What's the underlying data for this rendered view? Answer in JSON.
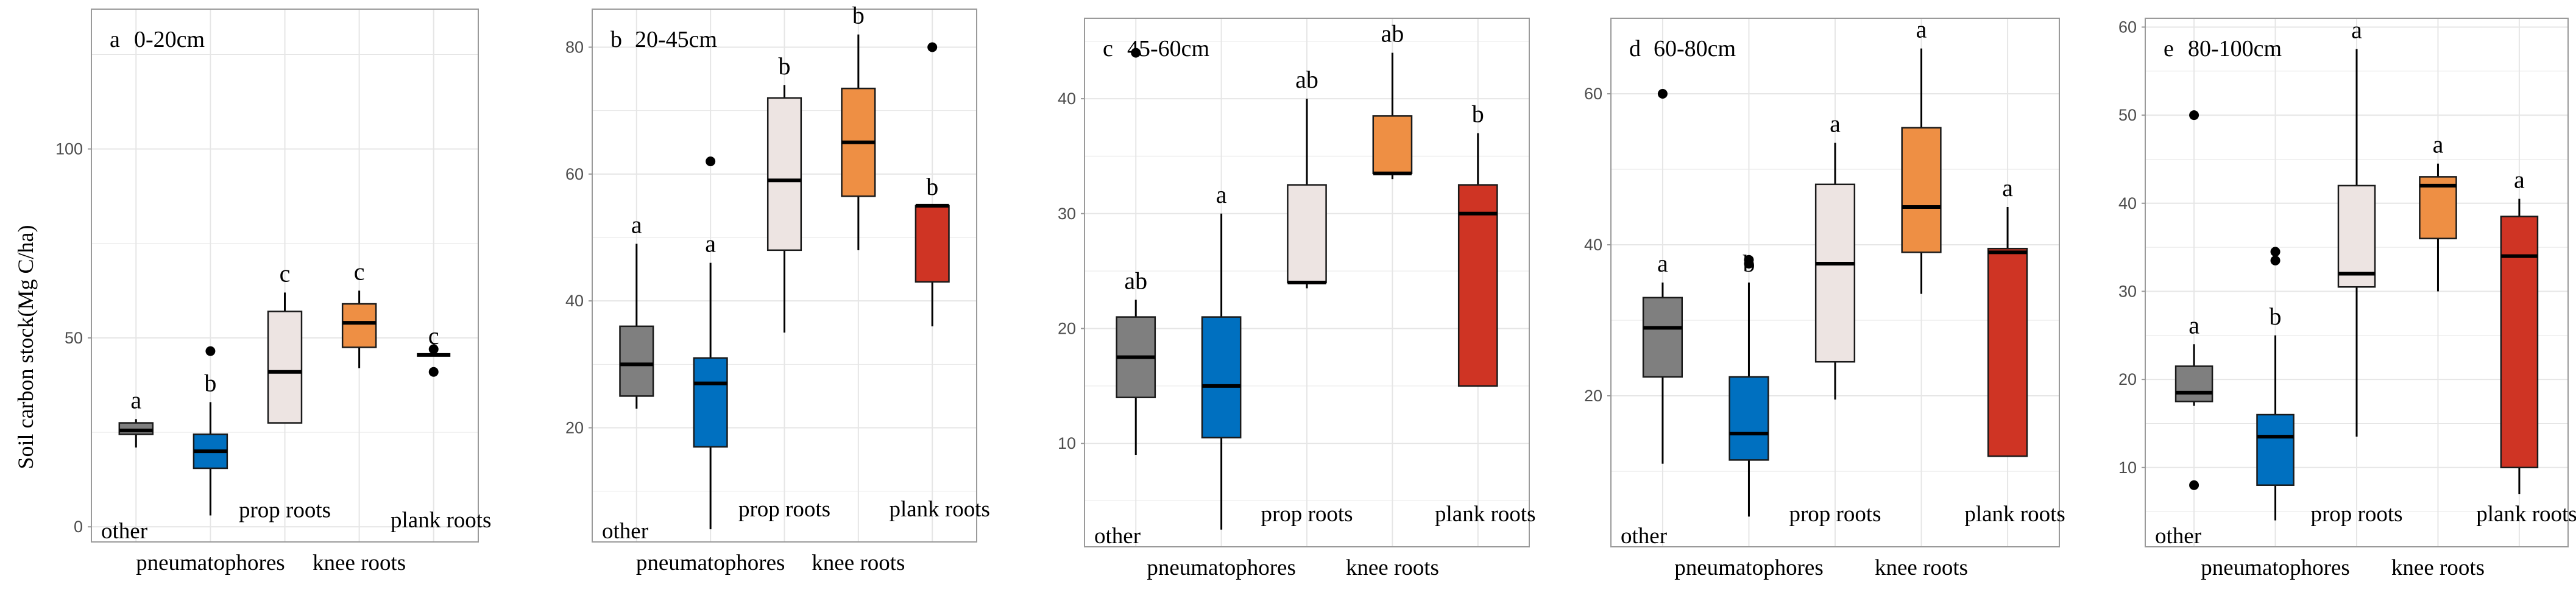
{
  "figure": {
    "ylabel": "Soil carbon stock(Mg C/ha)"
  },
  "colors": {
    "other": "#7f7f7f",
    "pneumatophores": "#0070c0",
    "prop roots": "#ede4e2",
    "knee roots": "#ee8f44",
    "plank roots": "#cf3424",
    "gridline": "#e6e6e6",
    "frame": "#9a9a9a",
    "axis_text": "#4d4d4d"
  },
  "chart_data": [
    {
      "type": "boxplot",
      "panel_label": "a",
      "title": "0-20cm",
      "ylabel": "Soil carbon stock(Mg C/ha)",
      "ylim": [
        -4,
        137
      ],
      "yticks": [
        0,
        50,
        100
      ],
      "categories": [
        "other",
        "pneumatophores",
        "prop roots",
        "knee roots",
        "plank roots"
      ],
      "boxes": [
        {
          "min": 21,
          "q1": 24.5,
          "median": 25.5,
          "q3": 27.5,
          "max": 28.5,
          "outliers": [],
          "letter": "a"
        },
        {
          "min": 3,
          "q1": 15.5,
          "median": 20,
          "q3": 24.5,
          "max": 33,
          "outliers": [
            46.5
          ],
          "letter": "b"
        },
        {
          "min": 27.5,
          "q1": 27.5,
          "median": 41,
          "q3": 57,
          "max": 62,
          "outliers": [],
          "letter": "c"
        },
        {
          "min": 42,
          "q1": 47.5,
          "median": 54,
          "q3": 59,
          "max": 62.5,
          "outliers": [],
          "letter": "c"
        },
        {
          "min": 45.5,
          "q1": 45.5,
          "median": 45.5,
          "q3": 45.5,
          "max": 45.5,
          "outliers": [
            47,
            41
          ],
          "letter": "c"
        }
      ]
    },
    {
      "type": "boxplot",
      "panel_label": "b",
      "title": "20-45cm",
      "ylim": [
        2,
        86
      ],
      "yticks": [
        20,
        40,
        60,
        80
      ],
      "categories": [
        "other",
        "pneumatophores",
        "prop roots",
        "knee roots",
        "plank roots"
      ],
      "boxes": [
        {
          "min": 23,
          "q1": 25,
          "median": 30,
          "q3": 36,
          "max": 49,
          "outliers": [],
          "letter": "a"
        },
        {
          "min": 4,
          "q1": 17,
          "median": 27,
          "q3": 31,
          "max": 46,
          "outliers": [
            62
          ],
          "letter": "a"
        },
        {
          "min": 35,
          "q1": 48,
          "median": 59,
          "q3": 72,
          "max": 74,
          "outliers": [],
          "letter": "b"
        },
        {
          "min": 48,
          "q1": 56.5,
          "median": 65,
          "q3": 73.5,
          "max": 82,
          "outliers": [],
          "letter": "b"
        },
        {
          "min": 36,
          "q1": 43,
          "median": 55,
          "q3": 55,
          "max": 55,
          "outliers": [
            80
          ],
          "letter": "b"
        }
      ]
    },
    {
      "type": "boxplot",
      "panel_label": "c",
      "title": "45-60cm",
      "ylim": [
        1,
        47
      ],
      "yticks": [
        10,
        20,
        30,
        40
      ],
      "categories": [
        "other",
        "pneumatophores",
        "prop roots",
        "knee roots",
        "plank roots"
      ],
      "boxes": [
        {
          "min": 9,
          "q1": 14,
          "median": 17.5,
          "q3": 21,
          "max": 22.5,
          "outliers": [
            44
          ],
          "letter": "ab"
        },
        {
          "min": 2.5,
          "q1": 10.5,
          "median": 15,
          "q3": 21,
          "max": 30,
          "outliers": [],
          "letter": "a"
        },
        {
          "min": 23.5,
          "q1": 24,
          "median": 24,
          "q3": 32.5,
          "max": 40,
          "outliers": [],
          "letter": "ab"
        },
        {
          "min": 33,
          "q1": 33.5,
          "median": 33.5,
          "q3": 38.5,
          "max": 44,
          "outliers": [],
          "letter": "ab"
        },
        {
          "min": 15,
          "q1": 15,
          "median": 30,
          "q3": 32.5,
          "max": 37,
          "outliers": [],
          "letter": "b"
        }
      ]
    },
    {
      "type": "boxplot",
      "panel_label": "d",
      "title": "60-80cm",
      "ylim": [
        0,
        70
      ],
      "yticks": [
        20,
        40,
        60
      ],
      "categories": [
        "other",
        "pneumatophores",
        "prop roots",
        "knee roots",
        "plank roots"
      ],
      "boxes": [
        {
          "min": 11,
          "q1": 22.5,
          "median": 29,
          "q3": 33,
          "max": 35,
          "outliers": [
            60
          ],
          "letter": "a"
        },
        {
          "min": 4,
          "q1": 11.5,
          "median": 15,
          "q3": 22.5,
          "max": 35,
          "outliers": [
            38,
            37.5
          ],
          "letter": "b"
        },
        {
          "min": 19.5,
          "q1": 24.5,
          "median": 37.5,
          "q3": 48,
          "max": 53.5,
          "outliers": [],
          "letter": "a"
        },
        {
          "min": 33.5,
          "q1": 39,
          "median": 45,
          "q3": 55.5,
          "max": 66,
          "outliers": [],
          "letter": "a"
        },
        {
          "min": 12,
          "q1": 12,
          "median": 39,
          "q3": 39.5,
          "max": 45,
          "outliers": [],
          "letter": "a"
        }
      ]
    },
    {
      "type": "boxplot",
      "panel_label": "e",
      "title": "80-100cm",
      "ylim": [
        1,
        61
      ],
      "yticks": [
        10,
        20,
        30,
        40,
        50,
        60
      ],
      "categories": [
        "other",
        "pneumatophores",
        "prop roots",
        "knee roots",
        "plank roots"
      ],
      "boxes": [
        {
          "min": 17,
          "q1": 17.5,
          "median": 18.5,
          "q3": 21.5,
          "max": 24,
          "outliers": [
            50,
            8
          ],
          "letter": "a"
        },
        {
          "min": 4,
          "q1": 8,
          "median": 13.5,
          "q3": 16,
          "max": 25,
          "outliers": [
            34.5,
            33.5
          ],
          "letter": "b"
        },
        {
          "min": 13.5,
          "q1": 30.5,
          "median": 32,
          "q3": 42,
          "max": 57.5,
          "outliers": [],
          "letter": "a"
        },
        {
          "min": 30,
          "q1": 36,
          "median": 42,
          "q3": 43,
          "max": 44.5,
          "outliers": [],
          "letter": "a"
        },
        {
          "min": 7,
          "q1": 10,
          "median": 34,
          "q3": 38.5,
          "max": 40.5,
          "outliers": [],
          "letter": "a"
        }
      ]
    }
  ]
}
